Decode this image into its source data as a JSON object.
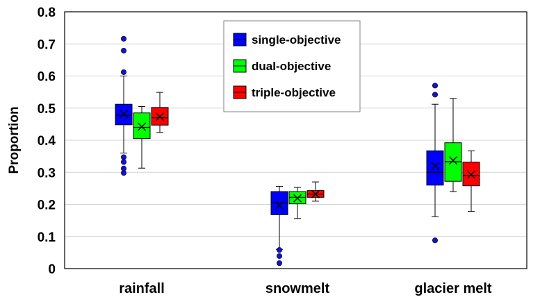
{
  "chart_data": {
    "type": "boxplot",
    "ylabel": "Proportion",
    "ylim": [
      0,
      0.8
    ],
    "yticks": [
      0,
      0.1,
      0.2,
      0.3,
      0.4,
      0.5,
      0.6,
      0.7,
      0.8
    ],
    "ytick_labels": [
      "0",
      "0.1",
      "0.2",
      "0.3",
      "0.4",
      "0.5",
      "0.6",
      "0.7",
      "0.8"
    ],
    "grid": true,
    "legend_position": "top-center",
    "categories": [
      "rainfall",
      "snowmelt",
      "glacier melt"
    ],
    "series": [
      {
        "name": "single-objective",
        "color": "#0000ff",
        "boxes": [
          {
            "q1": 0.448,
            "median": 0.478,
            "q3": 0.512,
            "mean": 0.482,
            "whisker_low": 0.36,
            "whisker_high": 0.6,
            "outliers": [
              0.298,
              0.312,
              0.332,
              0.347,
              0.612,
              0.679,
              0.716
            ]
          },
          {
            "q1": 0.168,
            "median": 0.205,
            "q3": 0.24,
            "mean": 0.197,
            "whisker_low": 0.06,
            "whisker_high": 0.256,
            "outliers": [
              0.017,
              0.039,
              0.058
            ]
          },
          {
            "q1": 0.26,
            "median": 0.3,
            "q3": 0.367,
            "mean": 0.32,
            "whisker_low": 0.162,
            "whisker_high": 0.512,
            "outliers": [
              0.088,
              0.542,
              0.57
            ]
          }
        ]
      },
      {
        "name": "dual-objective",
        "color": "#00ff00",
        "boxes": [
          {
            "q1": 0.405,
            "median": 0.44,
            "q3": 0.485,
            "mean": 0.442,
            "whisker_low": 0.313,
            "whisker_high": 0.505,
            "outliers": []
          },
          {
            "q1": 0.202,
            "median": 0.222,
            "q3": 0.24,
            "mean": 0.219,
            "whisker_low": 0.156,
            "whisker_high": 0.253,
            "outliers": []
          },
          {
            "q1": 0.272,
            "median": 0.333,
            "q3": 0.392,
            "mean": 0.337,
            "whisker_low": 0.24,
            "whisker_high": 0.53,
            "outliers": []
          }
        ]
      },
      {
        "name": "triple-objective",
        "color": "#ff0000",
        "boxes": [
          {
            "q1": 0.447,
            "median": 0.47,
            "q3": 0.502,
            "mean": 0.473,
            "whisker_low": 0.424,
            "whisker_high": 0.549,
            "outliers": []
          },
          {
            "q1": 0.222,
            "median": 0.232,
            "q3": 0.243,
            "mean": 0.232,
            "whisker_low": 0.21,
            "whisker_high": 0.27,
            "outliers": []
          },
          {
            "q1": 0.258,
            "median": 0.29,
            "q3": 0.332,
            "mean": 0.293,
            "whisker_low": 0.178,
            "whisker_high": 0.367,
            "outliers": []
          }
        ]
      }
    ]
  }
}
